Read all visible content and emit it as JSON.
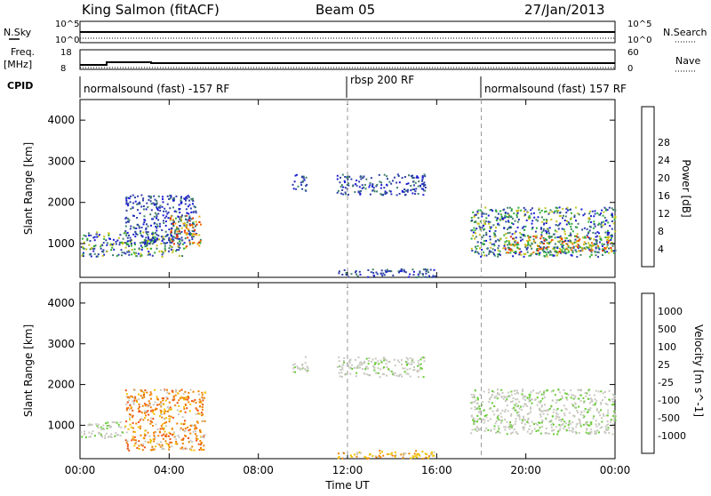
{
  "header": {
    "station": "King Salmon (fitACF)",
    "beam": "Beam 05",
    "date": "27/Jan/2013"
  },
  "top_panels": {
    "nsky_label": "N.Sky",
    "nsky_ticks": [
      "10^5",
      "10^0"
    ],
    "nsearch_label": "N.Search",
    "nsearch_ticks": [
      "10^5",
      "10^0"
    ],
    "freq_label": "Freq.",
    "freq_unit": "[MHz]",
    "freq_ticks": [
      "18",
      "8"
    ],
    "nave_label": "Nave",
    "nave_ticks": [
      "60",
      "0"
    ],
    "cpid_label": "CPID",
    "cpid_segments": [
      {
        "label": "normalsound (fast) -157 RF",
        "start_hour": 0,
        "end_hour": 12
      },
      {
        "label": "rbsp 200 RF",
        "start_hour": 12,
        "end_hour": 18
      },
      {
        "label": "normalsound (fast) 157 RF",
        "start_hour": 18,
        "end_hour": 24
      }
    ]
  },
  "axes": {
    "xlabel": "Time UT",
    "x_ticks": [
      "00:00",
      "04:00",
      "08:00",
      "12:00",
      "16:00",
      "20:00",
      "00:00"
    ],
    "ylabel": "Slant Range [km]",
    "y_ticks": [
      "1000",
      "2000",
      "3000",
      "4000"
    ]
  },
  "power_colorbar": {
    "label": "Power [dB]",
    "ticks": [
      "4",
      "8",
      "12",
      "16",
      "20",
      "24",
      "28"
    ],
    "colors": [
      "#1b1bd6",
      "#2c3fa8",
      "#3f7f6a",
      "#2fae3a",
      "#c2c21a",
      "#f0a000",
      "#f06a00",
      "#e83000",
      "#e00000"
    ]
  },
  "velocity_colorbar": {
    "label": "Velocity [m s^-1]",
    "ticks": [
      "1000",
      "500",
      "100",
      "25",
      "-25",
      "-100",
      "-500",
      "-1000"
    ],
    "colors": [
      "#1f1fc0",
      "#2f5fb8",
      "#2f9a4a",
      "#66cc33",
      "#c8c8c0",
      "#f0c000",
      "#f08000",
      "#f05010",
      "#e00000"
    ]
  },
  "chart_data": {
    "type": "heatmap",
    "x_range_hours": [
      0,
      24
    ],
    "y_range_km": [
      180,
      4500
    ],
    "dashed_time_lines_hours": [
      12,
      18
    ],
    "power_regions": [
      {
        "t0": 0.0,
        "t1": 4.6,
        "r0": 700,
        "r1": 1300,
        "level": "mid"
      },
      {
        "t0": 2.0,
        "t1": 5.2,
        "r0": 1000,
        "r1": 2200,
        "level": "low"
      },
      {
        "t0": 4.0,
        "t1": 5.4,
        "r0": 900,
        "r1": 1700,
        "level": "high"
      },
      {
        "t0": 9.5,
        "t1": 10.2,
        "r0": 2300,
        "r1": 2700,
        "level": "low"
      },
      {
        "t0": 11.5,
        "t1": 15.5,
        "r0": 2200,
        "r1": 2700,
        "level": "low"
      },
      {
        "t0": 11.5,
        "t1": 16.0,
        "r0": 200,
        "r1": 400,
        "level": "low"
      },
      {
        "t0": 17.5,
        "t1": 24.0,
        "r0": 700,
        "r1": 1900,
        "level": "mid"
      },
      {
        "t0": 19.0,
        "t1": 24.0,
        "r0": 800,
        "r1": 1200,
        "level": "high"
      }
    ],
    "velocity_regions": [
      {
        "t0": 0.0,
        "t1": 2.0,
        "r0": 700,
        "r1": 1100,
        "class": "-25..25"
      },
      {
        "t0": 2.0,
        "t1": 5.6,
        "r0": 400,
        "r1": 1900,
        "class": "-100..-500"
      },
      {
        "t0": 9.5,
        "t1": 10.2,
        "r0": 2300,
        "r1": 2700,
        "class": "-25..25"
      },
      {
        "t0": 11.5,
        "t1": 15.5,
        "r0": 2200,
        "r1": 2700,
        "class": "-25..25"
      },
      {
        "t0": 11.5,
        "t1": 16.0,
        "r0": 200,
        "r1": 400,
        "class": "-25..-100"
      },
      {
        "t0": 17.5,
        "t1": 24.0,
        "r0": 800,
        "r1": 1900,
        "class": "-25..25"
      }
    ]
  }
}
